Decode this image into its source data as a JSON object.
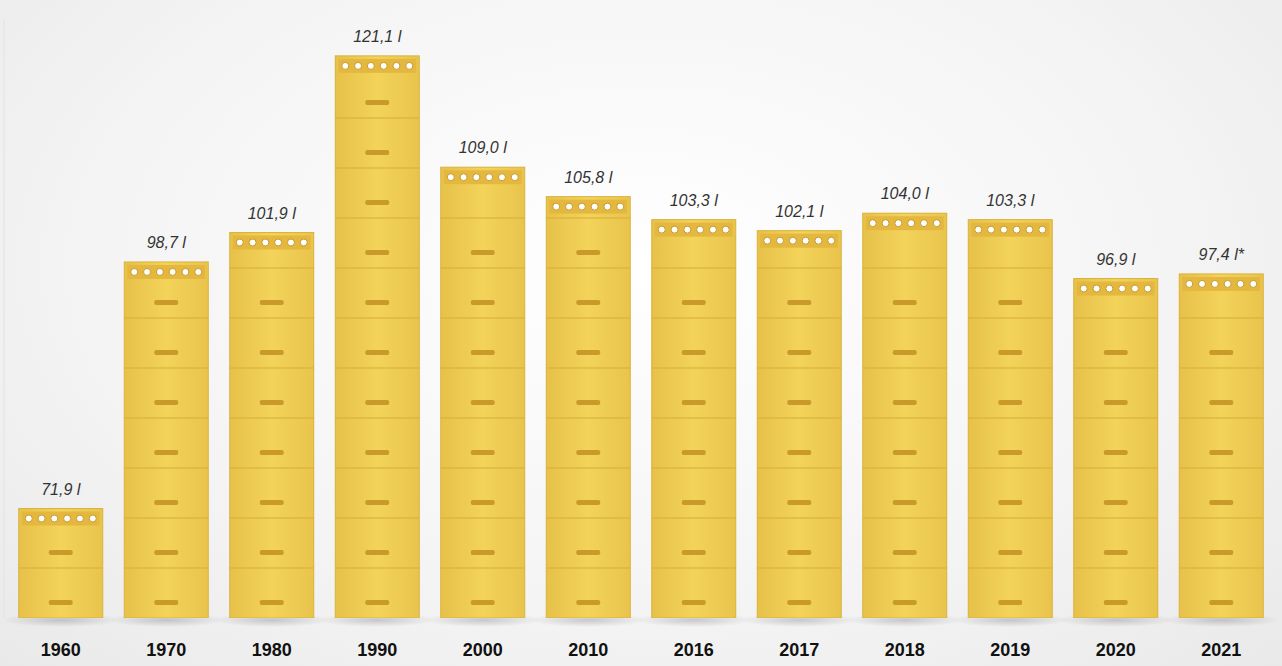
{
  "chart_data": {
    "type": "bar",
    "categories": [
      "1960",
      "1970",
      "1980",
      "1990",
      "2000",
      "2010",
      "2016",
      "2017",
      "2018",
      "2019",
      "2020",
      "2021"
    ],
    "values": [
      71.9,
      98.7,
      101.9,
      121.1,
      109.0,
      105.8,
      103.3,
      102.1,
      104.0,
      103.3,
      96.9,
      97.4
    ],
    "value_labels": [
      "71,9 l",
      "98,7 l",
      "101,9 l",
      "121,1 l",
      "109,0 l",
      "105,8 l",
      "103,3 l",
      "102,1 l",
      "104,0 l",
      "103,3 l",
      "96,9 l",
      "97,4 l*"
    ],
    "color": "#f3d35a",
    "ylim": [
      60,
      125
    ],
    "data_labels": true,
    "tick_labels": "x"
  }
}
